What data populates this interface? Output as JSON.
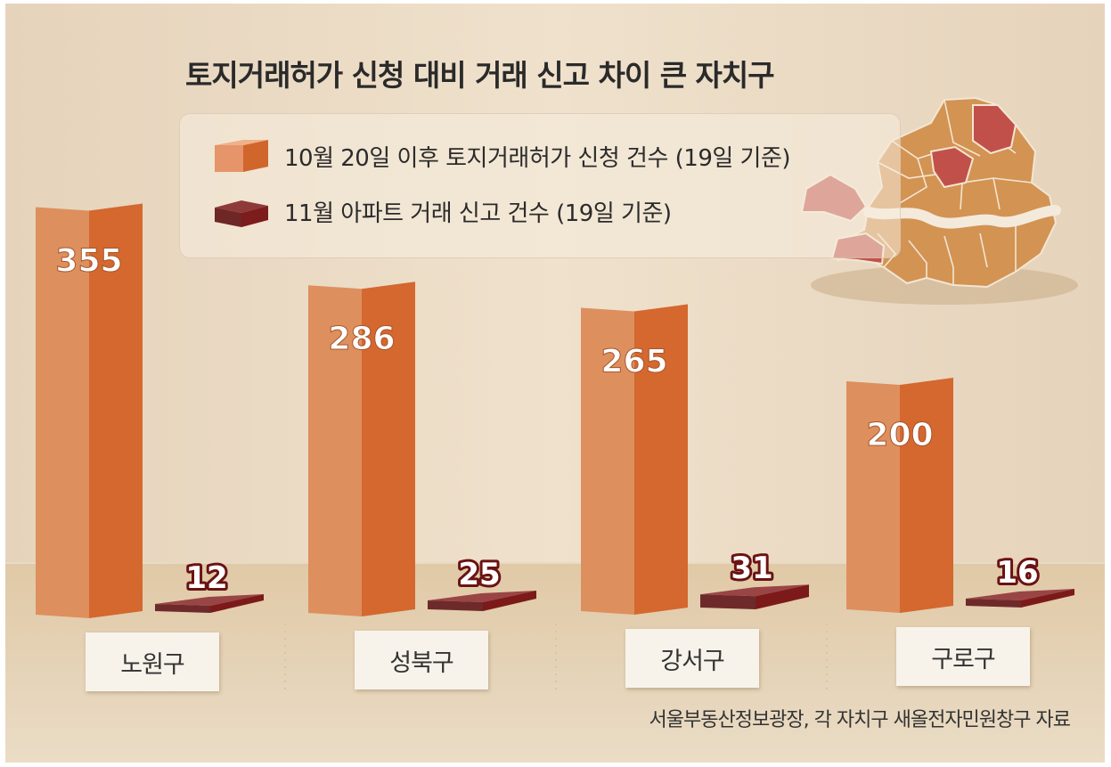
{
  "title": "토지거래허가 신청 대비 거래 신고 차이 큰 자치구",
  "source": "서울부동산정보광장, 각 자치구 새올전자민원창구 자료",
  "colors": {
    "series1": "#d8703a",
    "series2": "#7a2020",
    "background": "#e9d9c3",
    "floor": "#ddc7a6",
    "map_highlight": "#c2504a",
    "map_base": "#d08f4a"
  },
  "chart_data": {
    "type": "bar",
    "title": "토지거래허가 신청 대비 거래 신고 차이 큰 자치구",
    "categories": [
      "노원구",
      "성북구",
      "강서구",
      "구로구"
    ],
    "series": [
      {
        "name": "10월 20일 이후 토지거래허가 신청 건수 (19일 기준)",
        "values": [
          355,
          286,
          265,
          200
        ]
      },
      {
        "name": "11월 아파트 거래 신고 건수 (19일 기준)",
        "values": [
          12,
          25,
          31,
          16
        ]
      }
    ],
    "legend_position": "top-left",
    "grid": false
  }
}
